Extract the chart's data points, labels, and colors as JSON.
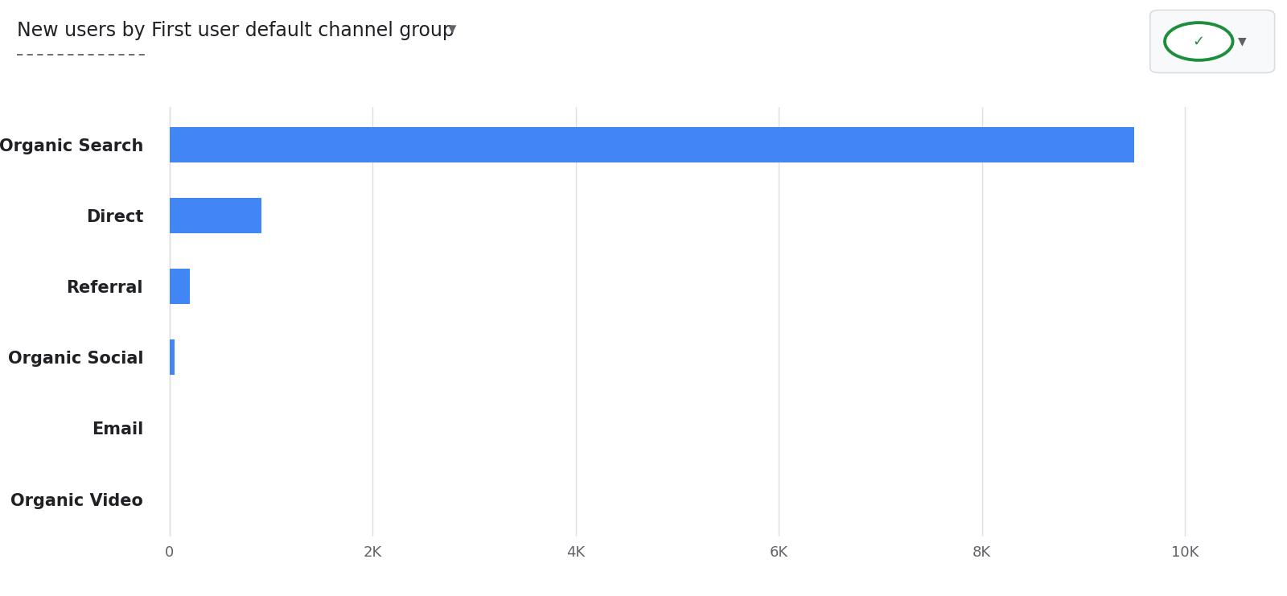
{
  "title_plain": "New users by First user default channel group",
  "title_arrow": "▾",
  "categories": [
    "Organic Video",
    "Email",
    "Organic Social",
    "Referral",
    "Direct",
    "Organic Search"
  ],
  "values": [
    0,
    0,
    50,
    200,
    900,
    9500
  ],
  "bar_color": "#4285f4",
  "background_color": "#ffffff",
  "xlim": [
    -150,
    10500
  ],
  "xticks": [
    0,
    2000,
    4000,
    6000,
    8000,
    10000
  ],
  "xticklabels": [
    "0",
    "2K",
    "4K",
    "6K",
    "8K",
    "10K"
  ],
  "grid_color": "#e0e0e0",
  "label_color": "#202124",
  "title_color": "#202124",
  "tick_label_color": "#5f6368",
  "title_fontsize": 17,
  "label_fontsize": 15,
  "tick_fontsize": 13,
  "bar_height": 0.5,
  "dashed_line_color": "#5f6368",
  "button_bg_color": "#f8f9fa",
  "button_border_color": "#dadce0",
  "check_color": "#1e8e3e",
  "arrow_color": "#5f6368"
}
